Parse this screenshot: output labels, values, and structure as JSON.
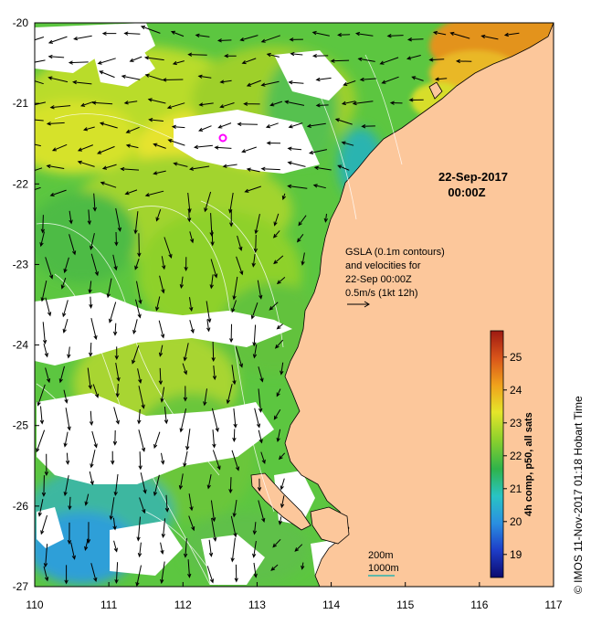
{
  "map": {
    "lon_range": [
      110,
      117
    ],
    "lat_range": [
      -27,
      -20
    ],
    "x_ticks": [
      "110",
      "111",
      "112",
      "113",
      "114",
      "115",
      "116",
      "117"
    ],
    "y_ticks": [
      "-20",
      "-21",
      "-22",
      "-23",
      "-24",
      "-25",
      "-26",
      "-27"
    ],
    "land_color": "#fcc79b",
    "cloud_color": "#ffffff",
    "station_marker_color": "#ff00ff"
  },
  "annotations": {
    "date": "22-Sep-2017",
    "time": "00:00Z",
    "info_lines": [
      "GSLA (0.1m contours)",
      "and velocities for",
      "22-Sep 00:00Z",
      "0.5m/s (1kt 12h)"
    ],
    "depth_200": "200m",
    "depth_1000": "1000m"
  },
  "colorbar": {
    "label": "4h comp, p50, all sats",
    "range": [
      18.3,
      25.8
    ],
    "ticks": [
      "19",
      "20",
      "21",
      "22",
      "23",
      "24",
      "25"
    ],
    "colors": [
      "#0c0a6e",
      "#1e3dc8",
      "#2a8fe0",
      "#29c4c4",
      "#2fb34a",
      "#8ed12c",
      "#e5e52a",
      "#f0a11c",
      "#d9541a",
      "#9e1a12"
    ]
  },
  "credit": "© IMOS 11-Nov-2017 01:18 Hobart Time"
}
